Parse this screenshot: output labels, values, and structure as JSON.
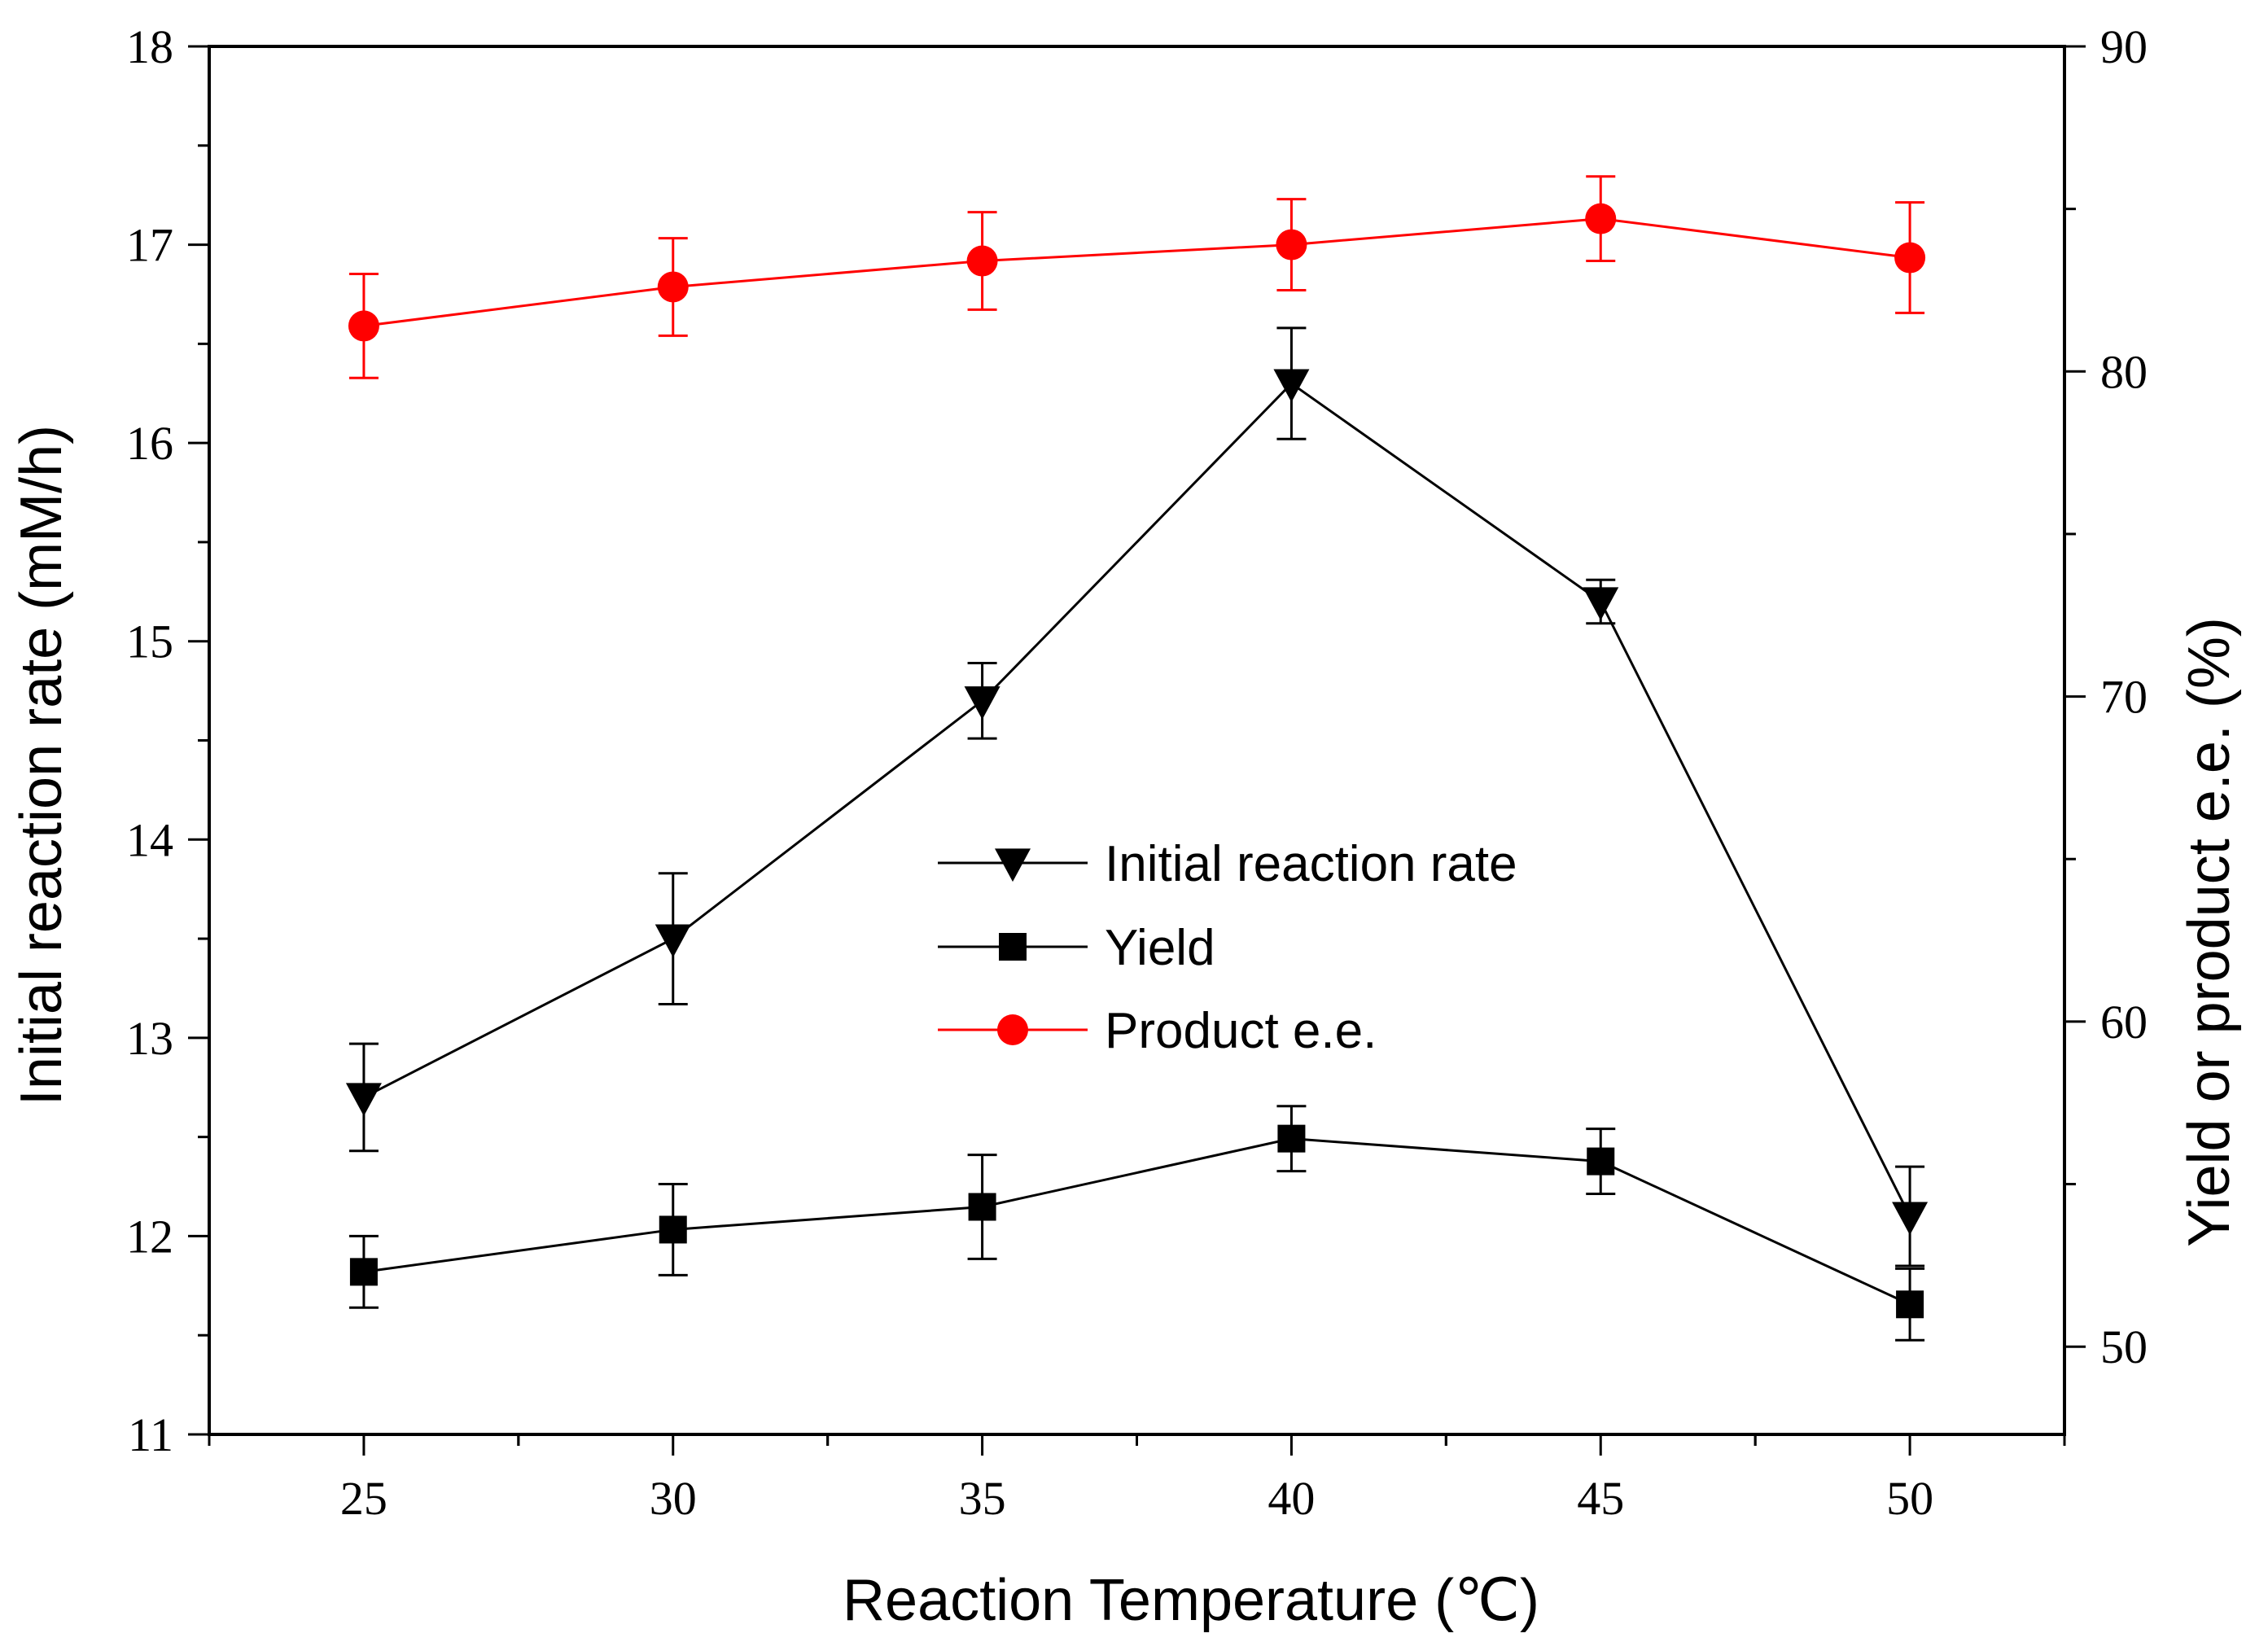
{
  "chart_data": {
    "type": "line",
    "title": "",
    "xlabel": "Reaction Temperature (℃)",
    "ylabel_left": "Initial reaction rate (mM/h)",
    "ylabel_right": "Yield or product e.e. (%)",
    "x": [
      25,
      30,
      35,
      40,
      45,
      50
    ],
    "x_ticks": [
      "25",
      "30",
      "35",
      "40",
      "45",
      "50"
    ],
    "xlim": [
      22.5,
      52.5
    ],
    "ylim_left": [
      11,
      18
    ],
    "ylim_right": [
      47.3,
      90
    ],
    "y_ticks_left": [
      "11",
      "12",
      "13",
      "14",
      "15",
      "16",
      "17",
      "18"
    ],
    "y_ticks_right": [
      "50",
      "60",
      "70",
      "80",
      "90"
    ],
    "grid": false,
    "legend_position": "center",
    "series": [
      {
        "name": "Initial reaction rate",
        "axis": "left",
        "marker": "triangle-down",
        "color": "#000000",
        "values": [
          12.7,
          13.5,
          14.7,
          16.3,
          15.2,
          12.1
        ],
        "errors": [
          0.27,
          0.33,
          0.19,
          0.28,
          0.11,
          0.25
        ]
      },
      {
        "name": "Yield",
        "axis": "right",
        "marker": "square",
        "color": "#000000",
        "values": [
          52.3,
          53.6,
          54.3,
          56.4,
          55.7,
          51.3
        ],
        "errors": [
          1.1,
          1.4,
          1.6,
          1.0,
          1.0,
          1.1
        ]
      },
      {
        "name": "Product e.e.",
        "axis": "right",
        "marker": "circle",
        "color": "#ff0000",
        "values": [
          81.4,
          82.6,
          83.4,
          83.9,
          84.7,
          83.5
        ],
        "errors": [
          1.6,
          1.5,
          1.5,
          1.4,
          1.3,
          1.7
        ]
      }
    ]
  }
}
